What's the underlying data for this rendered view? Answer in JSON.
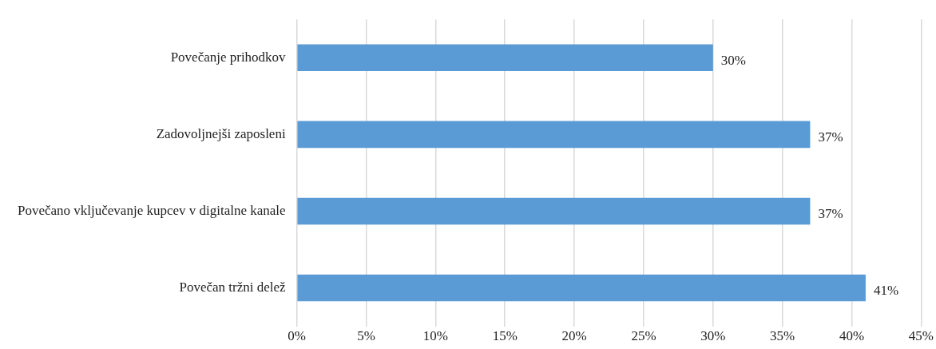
{
  "chart_data": {
    "type": "bar",
    "orientation": "horizontal",
    "categories": [
      "Povečanje prihodkov",
      "Zadovoljnejši zaposleni",
      "Povečano vključevanje kupcev v digitalne kanale",
      "Povečan tržni delež"
    ],
    "values": [
      30,
      37,
      37,
      41
    ],
    "color": "#5b9bd5",
    "value_labels": [
      "30%",
      "37%",
      "37%",
      "41%"
    ],
    "xlim": [
      0,
      45
    ],
    "xticks": [
      {
        "value": 0,
        "label": "0%"
      },
      {
        "value": 5,
        "label": "5%"
      },
      {
        "value": 10,
        "label": "10%"
      },
      {
        "value": 15,
        "label": "15%"
      },
      {
        "value": 20,
        "label": "20%"
      },
      {
        "value": 25,
        "label": "25%"
      },
      {
        "value": 30,
        "label": "30%"
      },
      {
        "value": 35,
        "label": "35%"
      },
      {
        "value": 40,
        "label": "40%"
      },
      {
        "value": 45,
        "label": "45%"
      }
    ],
    "grid": "x",
    "legend": false
  }
}
